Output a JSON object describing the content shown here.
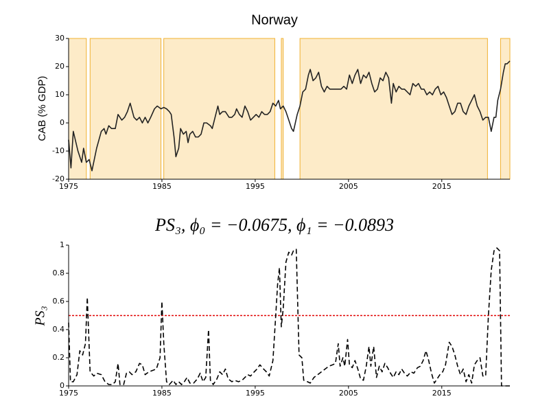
{
  "chart_data": [
    {
      "type": "line",
      "title": "Norway",
      "ylabel": "CAB (% GDP)",
      "x": [
        1975.0,
        1975.25,
        1975.5,
        1976.0,
        1976.4,
        1976.6,
        1976.9,
        1977.2,
        1977.5,
        1978.0,
        1978.5,
        1978.8,
        1979.0,
        1979.3,
        1979.6,
        1980.0,
        1980.3,
        1980.7,
        1981.0,
        1981.3,
        1981.6,
        1982.0,
        1982.3,
        1982.6,
        1982.9,
        1983.2,
        1983.5,
        1983.8,
        1984.2,
        1984.5,
        1984.9,
        1985.2,
        1985.5,
        1985.8,
        1986.0,
        1986.3,
        1986.5,
        1986.8,
        1987.0,
        1987.3,
        1987.6,
        1987.8,
        1988.0,
        1988.3,
        1988.6,
        1988.9,
        1989.2,
        1989.5,
        1989.8,
        1990.2,
        1990.4,
        1990.7,
        1991.0,
        1991.2,
        1991.5,
        1991.8,
        1992.2,
        1992.5,
        1992.8,
        1993.0,
        1993.3,
        1993.6,
        1993.9,
        1994.2,
        1994.5,
        1994.8,
        1995.1,
        1995.4,
        1995.7,
        1996.0,
        1996.3,
        1996.6,
        1996.9,
        1997.2,
        1997.5,
        1997.7,
        1998.0,
        1998.3,
        1998.6,
        1998.9,
        1999.1,
        1999.5,
        1999.8,
        2000.1,
        2000.4,
        2000.7,
        2000.9,
        2001.2,
        2001.5,
        2001.8,
        2002.1,
        2002.4,
        2002.7,
        2003.0,
        2003.3,
        2003.6,
        2003.9,
        2004.2,
        2004.5,
        2004.8,
        2005.1,
        2005.4,
        2005.7,
        2006.0,
        2006.3,
        2006.6,
        2006.9,
        2007.2,
        2007.5,
        2007.8,
        2008.1,
        2008.4,
        2008.7,
        2009.0,
        2009.3,
        2009.6,
        2009.8,
        2010.1,
        2010.4,
        2010.7,
        2011.0,
        2011.3,
        2011.6,
        2011.9,
        2012.2,
        2012.5,
        2012.8,
        2013.1,
        2013.4,
        2013.7,
        2014.0,
        2014.3,
        2014.6,
        2014.9,
        2015.2,
        2015.5,
        2015.8,
        2016.1,
        2016.4,
        2016.7,
        2017.0,
        2017.3,
        2017.6,
        2017.9,
        2018.2,
        2018.5,
        2018.8,
        2019.1,
        2019.4,
        2019.7,
        2020.0,
        2020.3,
        2020.6,
        2020.8,
        2021.0,
        2021.3,
        2021.6,
        2021.8,
        2022.0,
        2022.3
      ],
      "values": [
        -6,
        -16,
        -3,
        -10,
        -14,
        -9,
        -14,
        -13,
        -17,
        -9,
        -3,
        -2,
        -4,
        -1,
        -2,
        -2,
        3,
        1,
        2,
        4,
        7,
        2,
        1,
        2,
        0,
        2,
        0,
        2,
        5,
        6,
        5,
        5.5,
        5,
        4,
        3,
        -5,
        -12,
        -9,
        -2,
        -4,
        -3,
        -7,
        -4,
        -3,
        -5,
        -5,
        -4,
        0,
        0,
        -1,
        -2,
        2,
        6,
        3,
        4,
        4,
        2,
        2,
        3,
        5,
        3,
        2,
        6,
        4,
        1,
        2,
        3,
        2,
        4,
        3,
        3,
        4,
        7,
        6,
        8,
        5,
        6,
        4,
        1,
        -2,
        -3,
        3,
        6,
        11,
        12,
        17,
        19,
        15,
        16,
        18,
        13,
        11,
        13,
        12,
        12,
        12,
        12,
        12,
        13,
        12,
        17,
        14,
        17,
        19,
        14,
        17,
        16,
        18,
        14,
        11,
        12,
        16,
        15,
        18,
        16,
        7,
        14,
        11,
        13,
        12,
        12,
        11,
        10,
        14,
        13,
        14,
        12,
        12,
        10,
        11,
        10,
        12,
        13,
        10,
        11,
        9,
        6,
        3,
        4,
        7,
        7,
        4,
        3,
        6,
        8,
        10,
        6,
        4,
        1,
        2,
        2,
        -3,
        2,
        2,
        8,
        12,
        18,
        21,
        21,
        22
      ],
      "color": "#222222",
      "shaded_regions": [
        [
          1975,
          1976.9
        ],
        [
          1977.3,
          1984.9
        ],
        [
          1985.2,
          1997.1
        ],
        [
          1997.8,
          1998.0
        ],
        [
          1999.8,
          2019.9
        ],
        [
          2021.3,
          2022.3
        ]
      ],
      "shade_color": "#fdebc8",
      "shade_edge_color": "#f0b030",
      "xlim": [
        1975,
        2022.3
      ],
      "xticks": [
        1975,
        1985,
        1995,
        2005,
        2015
      ],
      "ylim": [
        -20,
        30
      ],
      "yticks": [
        -20,
        -10,
        0,
        10,
        20,
        30
      ]
    },
    {
      "type": "line",
      "title": "PS₃, ϕ₀ = −0.0675, ϕ₁ = −0.0893",
      "ylabel": "PS₃",
      "x": [
        1975.0,
        1975.2,
        1975.5,
        1975.9,
        1976.2,
        1976.5,
        1976.8,
        1977.0,
        1977.3,
        1977.7,
        1978.0,
        1978.5,
        1978.9,
        1979.3,
        1979.7,
        1980.0,
        1980.3,
        1980.5,
        1980.9,
        1981.2,
        1981.5,
        1981.8,
        1982.2,
        1982.6,
        1982.9,
        1983.2,
        1983.6,
        1984.0,
        1984.4,
        1984.8,
        1985.0,
        1985.2,
        1985.5,
        1985.8,
        1986.2,
        1986.5,
        1986.8,
        1987.1,
        1987.4,
        1987.7,
        1988.0,
        1988.4,
        1988.8,
        1989.1,
        1989.4,
        1989.7,
        1990.0,
        1990.2,
        1990.5,
        1990.9,
        1991.2,
        1991.5,
        1991.8,
        1992.1,
        1992.5,
        1992.8,
        1993.2,
        1993.6,
        1993.9,
        1994.2,
        1994.5,
        1994.9,
        1995.2,
        1995.5,
        1995.9,
        1996.2,
        1996.5,
        1996.9,
        1997.2,
        1997.4,
        1997.6,
        1997.8,
        1998.0,
        1998.3,
        1998.6,
        1998.9,
        1999.1,
        1999.4,
        1999.7,
        2000.0,
        2000.2,
        2000.6,
        2000.9,
        2001.3,
        2001.7,
        2002.1,
        2002.5,
        2002.9,
        2003.3,
        2003.6,
        2003.9,
        2004.1,
        2004.4,
        2004.6,
        2004.9,
        2005.1,
        2005.4,
        2005.7,
        2006.0,
        2006.3,
        2006.6,
        2006.9,
        2007.2,
        2007.4,
        2007.7,
        2008.0,
        2008.3,
        2008.6,
        2008.9,
        2009.2,
        2009.5,
        2009.8,
        2010.1,
        2010.4,
        2010.7,
        2011.0,
        2011.3,
        2011.7,
        2012.0,
        2012.4,
        2012.7,
        2013.0,
        2013.3,
        2013.6,
        2013.9,
        2014.2,
        2014.5,
        2014.8,
        2015.1,
        2015.4,
        2015.8,
        2016.1,
        2016.4,
        2016.7,
        2017.0,
        2017.3,
        2017.6,
        2017.9,
        2018.2,
        2018.5,
        2018.8,
        2019.1,
        2019.4,
        2019.7,
        2020.0,
        2020.3,
        2020.6,
        2020.9,
        2021.2,
        2021.4,
        2021.7,
        2022.3
      ],
      "values": [
        0.45,
        0.03,
        0.03,
        0.08,
        0.25,
        0.22,
        0.3,
        0.63,
        0.1,
        0.07,
        0.09,
        0.08,
        0.03,
        0.01,
        0.01,
        0.03,
        0.16,
        0.01,
        0.01,
        0.09,
        0.1,
        0.08,
        0.1,
        0.16,
        0.15,
        0.08,
        0.1,
        0.11,
        0.12,
        0.2,
        0.6,
        0.3,
        0.03,
        0.01,
        0.04,
        0.01,
        0.03,
        0.01,
        0.03,
        0.06,
        0.02,
        0.02,
        0.05,
        0.09,
        0.03,
        0.06,
        0.4,
        0.04,
        0.01,
        0.05,
        0.1,
        0.08,
        0.12,
        0.05,
        0.03,
        0.04,
        0.03,
        0.04,
        0.06,
        0.08,
        0.07,
        0.1,
        0.12,
        0.15,
        0.12,
        0.1,
        0.07,
        0.18,
        0.5,
        0.72,
        0.84,
        0.42,
        0.55,
        0.88,
        0.95,
        0.93,
        0.96,
        0.97,
        0.22,
        0.2,
        0.04,
        0.03,
        0.02,
        0.06,
        0.08,
        0.1,
        0.12,
        0.14,
        0.15,
        0.16,
        0.3,
        0.14,
        0.2,
        0.14,
        0.33,
        0.15,
        0.13,
        0.18,
        0.12,
        0.05,
        0.04,
        0.14,
        0.28,
        0.14,
        0.28,
        0.06,
        0.14,
        0.1,
        0.16,
        0.13,
        0.09,
        0.06,
        0.1,
        0.08,
        0.12,
        0.09,
        0.07,
        0.1,
        0.09,
        0.13,
        0.14,
        0.18,
        0.25,
        0.18,
        0.09,
        0.02,
        0.05,
        0.08,
        0.1,
        0.15,
        0.31,
        0.28,
        0.22,
        0.14,
        0.08,
        0.12,
        0.03,
        0.08,
        0.02,
        0.15,
        0.18,
        0.2,
        0.07,
        0.07,
        0.5,
        0.82,
        0.96,
        0.98,
        0.96,
        0,
        0,
        0
      ],
      "color": "#000000",
      "linestyle": "dashed",
      "hline": {
        "value": 0.5,
        "color": "#e00000",
        "linestyle": "dotted"
      },
      "xlim": [
        1975,
        2022.3
      ],
      "xticks": [
        1975,
        1985,
        1995,
        2005,
        2015
      ],
      "ylim": [
        0,
        1
      ],
      "yticks": [
        0,
        0.2,
        0.4,
        0.6,
        0.8,
        1
      ]
    }
  ]
}
